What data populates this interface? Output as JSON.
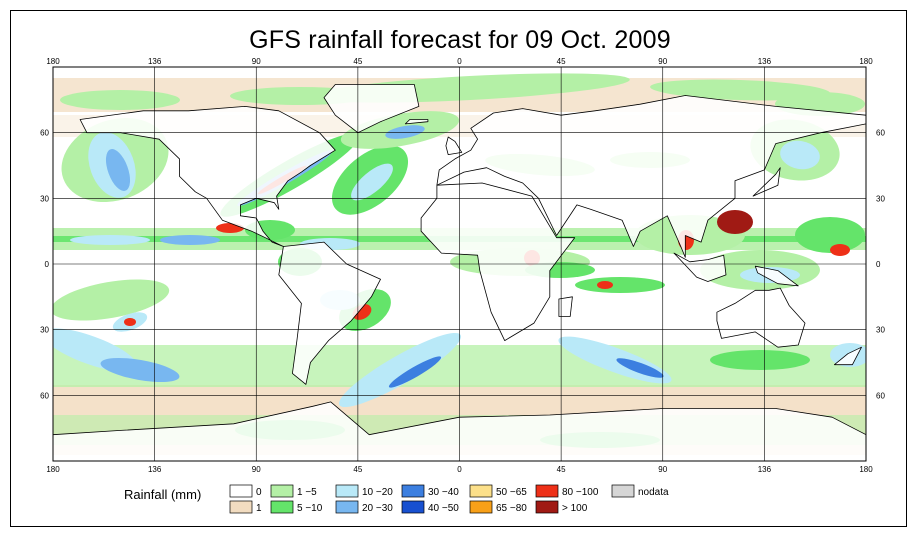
{
  "title": "GFS rainfall forecast for 09 Oct. 2009",
  "map": {
    "lon_ticks_top": [
      "180",
      "136",
      "90",
      "45",
      "0",
      "45",
      "90",
      "136",
      "180"
    ],
    "lon_ticks_bottom": [
      "180",
      "136",
      "90",
      "45",
      "0",
      "45",
      "90",
      "136",
      "180"
    ],
    "lat_ticks_left": [
      "60",
      "30",
      "0",
      "30",
      "60"
    ],
    "lat_ticks_right": [
      "60",
      "30",
      "0",
      "30",
      "60"
    ],
    "ocean_color": "#ffffff",
    "land_outline_color": "#000000",
    "grid_color": "#000000"
  },
  "legend": {
    "title": "Rainfall (mm)",
    "classes": [
      {
        "label": "0",
        "color": "#ffffff"
      },
      {
        "label": "1",
        "color": "#f2dcc0"
      },
      {
        "label": "1 −5",
        "color": "#b4f0a6"
      },
      {
        "label": "5 −10",
        "color": "#64e46a"
      },
      {
        "label": "10 −20",
        "color": "#b9e9f8"
      },
      {
        "label": "20 −30",
        "color": "#78b7f0"
      },
      {
        "label": "30 −40",
        "color": "#3c7fe0"
      },
      {
        "label": "40 −50",
        "color": "#1850d0"
      },
      {
        "label": "50 −65",
        "color": "#fce08a"
      },
      {
        "label": "65 −80",
        "color": "#f8a018"
      },
      {
        "label": "80 −100",
        "color": "#ee3018"
      },
      {
        "label": "> 100",
        "color": "#a01a14"
      },
      {
        "label": "nodata",
        "color": "#d6d6d6"
      }
    ]
  }
}
